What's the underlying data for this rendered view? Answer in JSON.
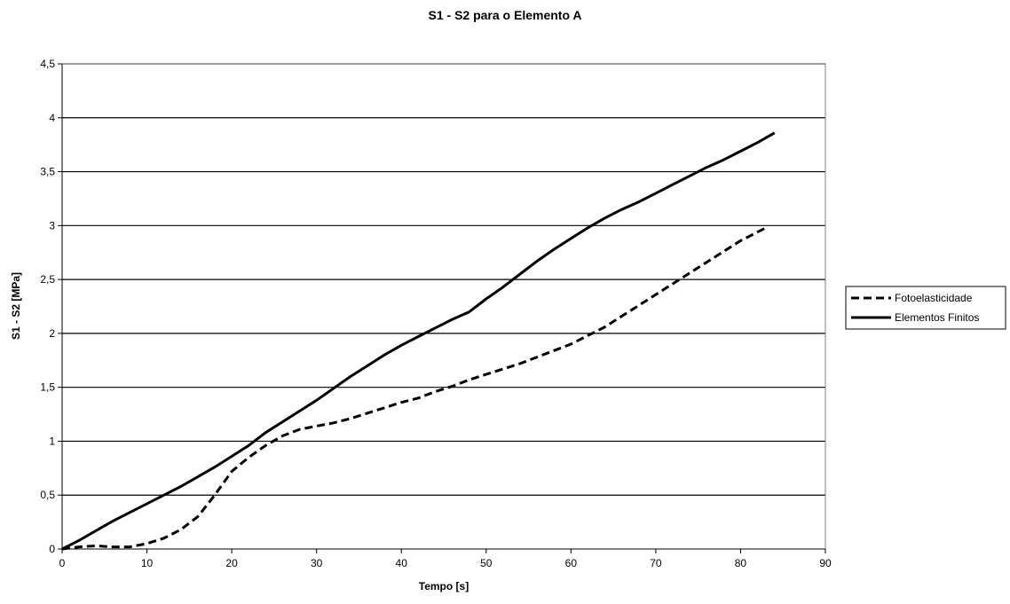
{
  "chart_data": {
    "type": "line",
    "title": "S1 - S2 para o Elemento A",
    "xlabel": "Tempo [s]",
    "ylabel": "S1 - S2 [MPa]",
    "xlim": [
      0,
      90
    ],
    "ylim": [
      0,
      4.5
    ],
    "x_ticks": [
      0,
      10,
      20,
      30,
      40,
      50,
      60,
      70,
      80,
      90
    ],
    "x_tick_labels": [
      "0",
      "10",
      "20",
      "30",
      "40",
      "50",
      "60",
      "70",
      "80",
      "90"
    ],
    "y_ticks": [
      0,
      0.5,
      1,
      1.5,
      2,
      2.5,
      3,
      3.5,
      4,
      4.5
    ],
    "y_tick_labels": [
      "0",
      "0,5",
      "1",
      "1,5",
      "2",
      "2,5",
      "3",
      "3,5",
      "4",
      "4,5"
    ],
    "grid": "horizontal",
    "legend_position": "right",
    "series": [
      {
        "name": "Fotoelasticidade",
        "style": "dashed",
        "color": "#000000",
        "x": [
          0,
          2,
          4,
          6,
          8,
          10,
          12,
          14,
          16,
          18,
          20,
          22,
          24,
          26,
          28,
          30,
          32,
          34,
          36,
          38,
          40,
          42,
          44,
          46,
          48,
          50,
          52,
          54,
          56,
          58,
          60,
          62,
          64,
          66,
          68,
          70,
          72,
          74,
          76,
          78,
          80,
          82,
          83
        ],
        "values": [
          0,
          0.02,
          0.03,
          0.02,
          0.02,
          0.05,
          0.1,
          0.18,
          0.3,
          0.5,
          0.72,
          0.85,
          0.96,
          1.05,
          1.11,
          1.14,
          1.17,
          1.21,
          1.26,
          1.31,
          1.36,
          1.4,
          1.46,
          1.51,
          1.57,
          1.62,
          1.67,
          1.72,
          1.78,
          1.84,
          1.9,
          1.98,
          2.06,
          2.16,
          2.26,
          2.36,
          2.46,
          2.56,
          2.66,
          2.76,
          2.86,
          2.94,
          2.98
        ]
      },
      {
        "name": "Elementos Finitos",
        "style": "solid",
        "color": "#000000",
        "x": [
          0,
          2,
          4,
          6,
          8,
          10,
          12,
          14,
          16,
          18,
          20,
          22,
          24,
          26,
          28,
          30,
          32,
          34,
          36,
          38,
          40,
          42,
          44,
          46,
          48,
          50,
          52,
          54,
          56,
          58,
          60,
          62,
          64,
          66,
          68,
          70,
          72,
          74,
          76,
          78,
          80,
          82,
          84
        ],
        "values": [
          0,
          0.08,
          0.17,
          0.26,
          0.34,
          0.42,
          0.5,
          0.58,
          0.67,
          0.76,
          0.86,
          0.96,
          1.08,
          1.18,
          1.28,
          1.38,
          1.49,
          1.6,
          1.7,
          1.8,
          1.89,
          1.97,
          2.05,
          2.13,
          2.2,
          2.32,
          2.43,
          2.55,
          2.67,
          2.78,
          2.88,
          2.98,
          3.07,
          3.15,
          3.22,
          3.3,
          3.38,
          3.46,
          3.54,
          3.61,
          3.69,
          3.77,
          3.86
        ]
      }
    ]
  }
}
